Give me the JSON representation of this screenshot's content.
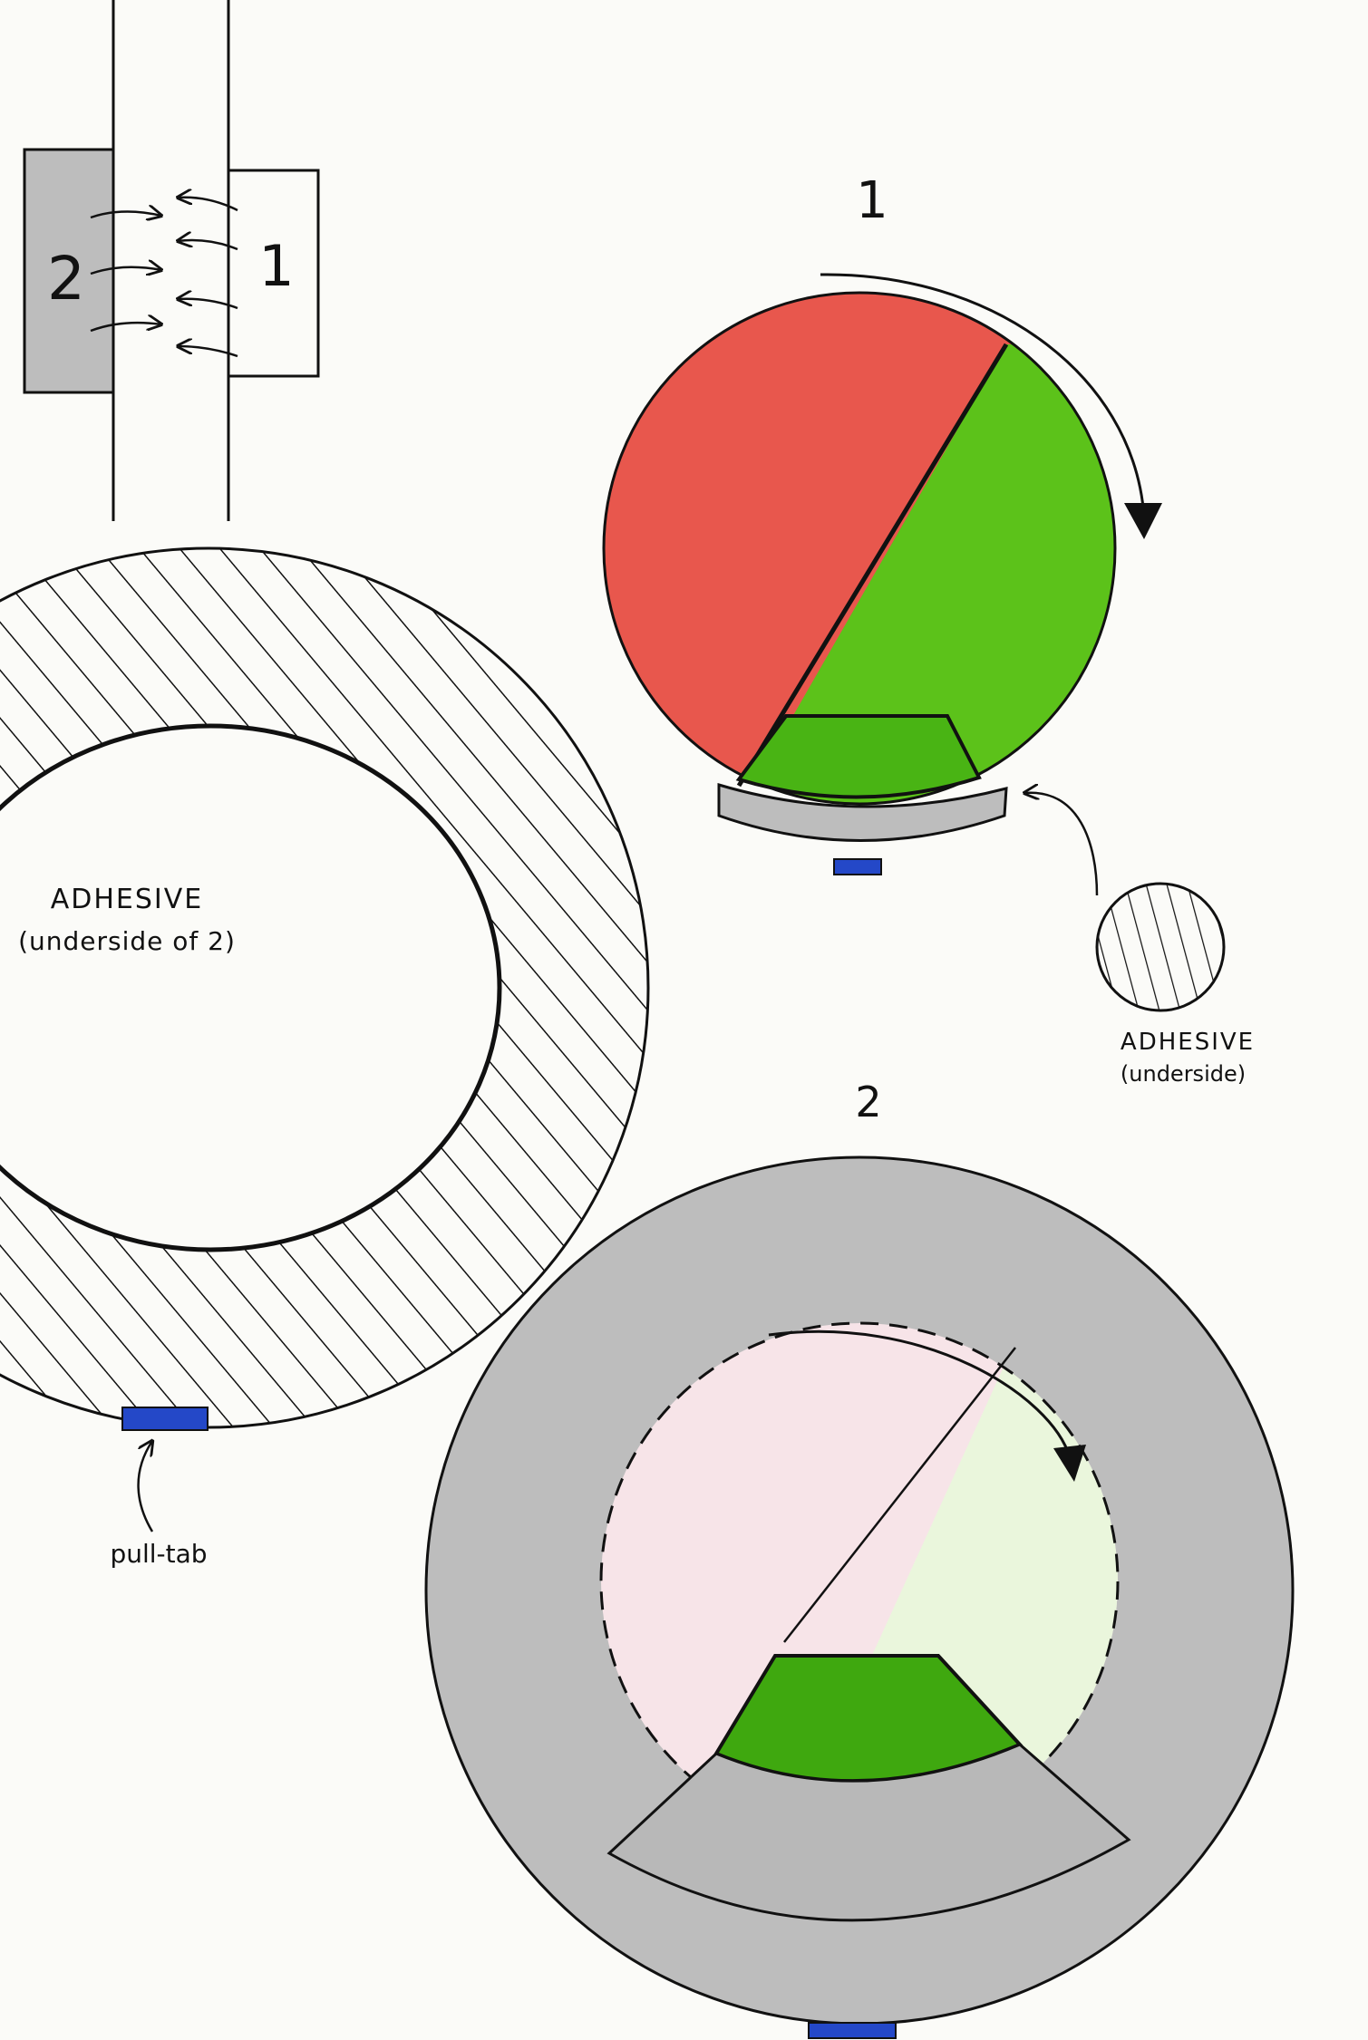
{
  "side_view": {
    "label_part2": "2",
    "label_part1": "1"
  },
  "adhesive_ring": {
    "title": "ADHESIVE",
    "subtitle": "(underside of 2)",
    "pull_tab_label": "pull-tab"
  },
  "dial_1": {
    "number": "1",
    "adhesive_callout_title": "ADHESIVE",
    "adhesive_callout_subtitle": "(underside)"
  },
  "dial_2": {
    "number": "2"
  },
  "colors": {
    "red": "#e8574d",
    "green": "#5cc21a",
    "dark_green": "#3fa80f",
    "gray": "#bdbdbd",
    "blue": "#2448c8",
    "ink": "#111111",
    "pale_pink": "#f7e4e8",
    "pale_green": "#eaf6dc"
  }
}
